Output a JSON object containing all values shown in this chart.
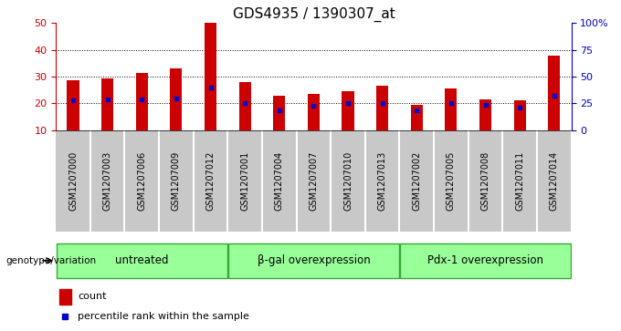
{
  "title": "GDS4935 / 1390307_at",
  "samples": [
    "GSM1207000",
    "GSM1207003",
    "GSM1207006",
    "GSM1207009",
    "GSM1207012",
    "GSM1207001",
    "GSM1207004",
    "GSM1207007",
    "GSM1207010",
    "GSM1207013",
    "GSM1207002",
    "GSM1207005",
    "GSM1207008",
    "GSM1207011",
    "GSM1207014"
  ],
  "counts": [
    28.5,
    29.5,
    31.5,
    33.0,
    50.0,
    28.0,
    23.0,
    23.5,
    24.5,
    26.5,
    19.5,
    25.5,
    21.5,
    21.0,
    38.0
  ],
  "percentile_ranks": [
    21.0,
    21.5,
    21.5,
    22.0,
    26.0,
    20.0,
    17.5,
    19.0,
    20.0,
    20.0,
    17.5,
    20.0,
    19.5,
    18.5,
    23.0
  ],
  "ymin": 10,
  "ymax": 50,
  "bar_bottom": 10,
  "bar_color": "#cc0000",
  "dot_color": "#0000cc",
  "bar_width": 0.35,
  "groups": [
    {
      "label": "untreated",
      "start": 0,
      "end": 5
    },
    {
      "label": "β-gal overexpression",
      "start": 5,
      "end": 10
    },
    {
      "label": "Pdx-1 overexpression",
      "start": 10,
      "end": 15
    }
  ],
  "group_color": "#99ff99",
  "group_border_color": "#33aa33",
  "xlabel_label": "genotype/variation",
  "right_yaxis_color": "#0000cc",
  "right_yaxis_ticks": [
    0,
    25,
    50,
    75,
    100
  ],
  "right_yaxis_labels": [
    "0",
    "25",
    "50",
    "75",
    "100%"
  ],
  "left_yaxis_color": "#cc0000",
  "left_yaxis_ticks": [
    10,
    20,
    30,
    40,
    50
  ],
  "bg_color": "#ffffff",
  "plot_bg_color": "#ffffff",
  "xtick_bg": "#c8c8c8",
  "legend_count_color": "#cc0000",
  "legend_dot_color": "#0000cc",
  "legend_count_label": "count",
  "legend_dot_label": "percentile rank within the sample",
  "dotted_grid_levels": [
    20,
    30,
    40
  ],
  "title_fontsize": 11,
  "tick_fontsize": 7,
  "group_label_fontsize": 8.5,
  "right_ytick_fontsize": 8
}
